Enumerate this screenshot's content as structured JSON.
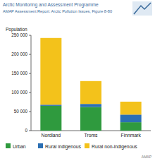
{
  "chart_data": {
    "type": "bar",
    "stacked": true,
    "title": "Arctic Monitoring and Assessment Programme",
    "subtitle": "AMAP Assessment Report: Arctic Pollution Issues, Figure 8-80",
    "y_label": "Population",
    "annotations": [
      "AMAP"
    ],
    "categories": [
      "Nordland",
      "Troms",
      "Finnmark"
    ],
    "series": [
      {
        "name": "Urban",
        "color": "#2f9a3e",
        "values": [
          65000,
          62000,
          22000
        ]
      },
      {
        "name": "Rural indigenous",
        "color": "#2b6fb3",
        "values": [
          3000,
          8000,
          20000
        ]
      },
      {
        "name": "Rural non-indigenous",
        "color": "#f3c21b",
        "values": [
          175000,
          60000,
          34000
        ]
      }
    ],
    "ylim": [
      0,
      250000
    ],
    "yticks": [
      0,
      {
        "value": 50000,
        "label": "50 000"
      },
      {
        "value": 100000,
        "label": "100 000"
      },
      {
        "value": 150000,
        "label": "150 000"
      },
      {
        "value": 200000,
        "label": "200 000"
      },
      {
        "value": 250000,
        "label": "250 000"
      }
    ],
    "grid": false,
    "legend": "bottom"
  }
}
